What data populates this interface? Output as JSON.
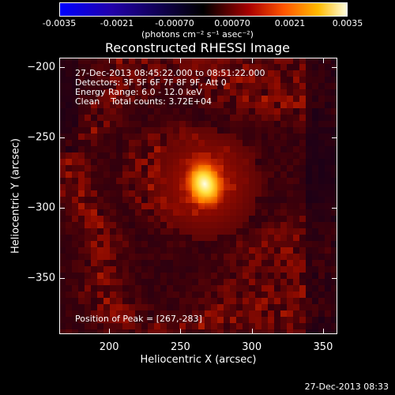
{
  "chart_data": {
    "type": "heatmap",
    "title": "Reconstructed RHESSI Image",
    "xlabel": "Heliocentric X (arcsec)",
    "ylabel": "Heliocentric Y (arcsec)",
    "xlim": [
      165,
      360
    ],
    "ylim": [
      -390,
      -193
    ],
    "xticks": [
      200,
      250,
      300,
      350
    ],
    "yticks": [
      -200,
      -250,
      -300,
      -350
    ],
    "colorbar": {
      "ticks": [
        "-0.0035",
        "-0.0021",
        "-0.00070",
        "0.00070",
        "0.0021",
        "0.0035"
      ],
      "range": [
        -0.0035,
        0.0035
      ],
      "units_text": "(photons cm⁻² s⁻¹ asec⁻²)"
    },
    "annotations": [
      "27-Dec-2013 08:45:22.000 to 08:51:22.000",
      "Detectors: 3F 5F 6F 7F 8F 9F, Att 0",
      "Energy Range: 6.0 - 12.0 keV",
      "Clean    Total counts: 3.72E+04"
    ],
    "peak_label": "Position of Peak = [267,-283]",
    "peak": [
      267,
      -283
    ],
    "footer": "27-Dec-2013 08:33",
    "colors": {
      "low": "#0000ff",
      "mid": "#000000",
      "high": "#ffffe0"
    }
  }
}
